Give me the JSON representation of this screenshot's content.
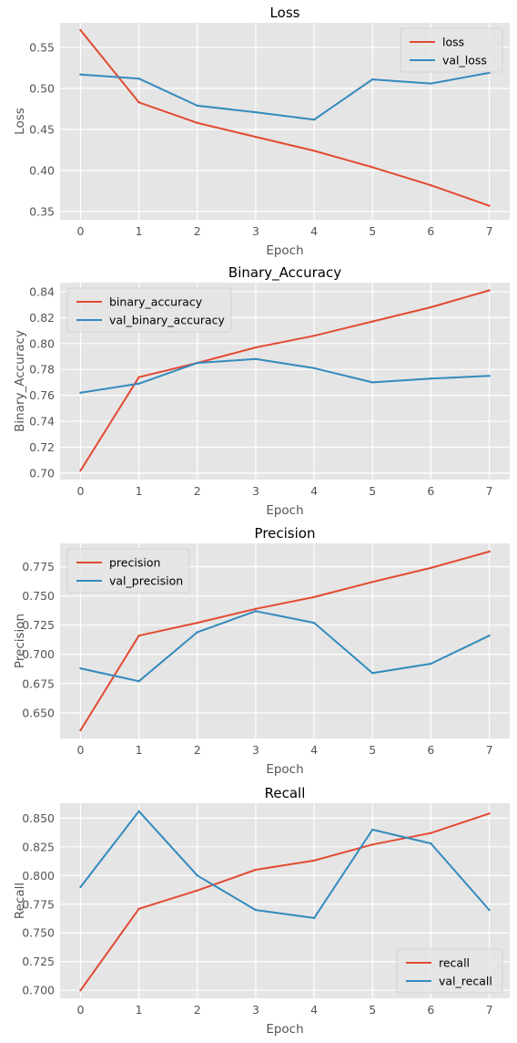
{
  "chart_data": [
    {
      "type": "line",
      "title": "Loss",
      "xlabel": "Epoch",
      "ylabel": "Loss",
      "x": [
        0,
        1,
        2,
        3,
        4,
        5,
        6,
        7
      ],
      "xticks": [
        "0",
        "1",
        "2",
        "3",
        "4",
        "5",
        "6",
        "7"
      ],
      "xlim": [
        -0.35,
        7.35
      ],
      "ylim": [
        0.34,
        0.58
      ],
      "yticks": [
        "0.35",
        "0.40",
        "0.45",
        "0.50",
        "0.55"
      ],
      "grid": true,
      "legend_position": "top-right",
      "series": [
        {
          "name": "loss",
          "color": "#E24A33",
          "values": [
            0.571,
            0.483,
            0.458,
            0.441,
            0.424,
            0.404,
            0.382,
            0.357
          ]
        },
        {
          "name": "val_loss",
          "color": "#348ABD",
          "values": [
            0.517,
            0.512,
            0.479,
            0.471,
            0.462,
            0.511,
            0.506,
            0.519
          ]
        }
      ]
    },
    {
      "type": "line",
      "title": "Binary_Accuracy",
      "xlabel": "Epoch",
      "ylabel": "Binary_Accuracy",
      "x": [
        0,
        1,
        2,
        3,
        4,
        5,
        6,
        7
      ],
      "xticks": [
        "0",
        "1",
        "2",
        "3",
        "4",
        "5",
        "6",
        "7"
      ],
      "xlim": [
        -0.35,
        7.35
      ],
      "ylim": [
        0.695,
        0.847
      ],
      "yticks": [
        "0.70",
        "0.72",
        "0.74",
        "0.76",
        "0.78",
        "0.80",
        "0.82",
        "0.84"
      ],
      "grid": true,
      "legend_position": "top-left",
      "series": [
        {
          "name": "binary_accuracy",
          "color": "#E24A33",
          "values": [
            0.702,
            0.774,
            0.785,
            0.797,
            0.806,
            0.817,
            0.828,
            0.841
          ]
        },
        {
          "name": "val_binary_accuracy",
          "color": "#348ABD",
          "values": [
            0.762,
            0.769,
            0.785,
            0.788,
            0.781,
            0.77,
            0.773,
            0.775
          ]
        }
      ]
    },
    {
      "type": "line",
      "title": "Precision",
      "xlabel": "Epoch",
      "ylabel": "Precision",
      "x": [
        0,
        1,
        2,
        3,
        4,
        5,
        6,
        7
      ],
      "xticks": [
        "0",
        "1",
        "2",
        "3",
        "4",
        "5",
        "6",
        "7"
      ],
      "xlim": [
        -0.35,
        7.35
      ],
      "ylim": [
        0.628,
        0.795
      ],
      "yticks": [
        "0.650",
        "0.675",
        "0.700",
        "0.725",
        "0.750",
        "0.775"
      ],
      "grid": true,
      "legend_position": "top-left",
      "series": [
        {
          "name": "precision",
          "color": "#E24A33",
          "values": [
            0.635,
            0.716,
            0.727,
            0.739,
            0.749,
            0.762,
            0.774,
            0.788
          ]
        },
        {
          "name": "val_precision",
          "color": "#348ABD",
          "values": [
            0.688,
            0.677,
            0.719,
            0.737,
            0.727,
            0.684,
            0.692,
            0.716
          ]
        }
      ]
    },
    {
      "type": "line",
      "title": "Recall",
      "xlabel": "Epoch",
      "ylabel": "Recall",
      "x": [
        0,
        1,
        2,
        3,
        4,
        5,
        6,
        7
      ],
      "xticks": [
        "0",
        "1",
        "2",
        "3",
        "4",
        "5",
        "6",
        "7"
      ],
      "xlim": [
        -0.35,
        7.35
      ],
      "ylim": [
        0.693,
        0.863
      ],
      "yticks": [
        "0.700",
        "0.725",
        "0.750",
        "0.775",
        "0.800",
        "0.825",
        "0.850"
      ],
      "grid": true,
      "legend_position": "bottom-right",
      "series": [
        {
          "name": "recall",
          "color": "#E24A33",
          "values": [
            0.7,
            0.771,
            0.787,
            0.805,
            0.813,
            0.827,
            0.837,
            0.854
          ]
        },
        {
          "name": "val_recall",
          "color": "#348ABD",
          "values": [
            0.79,
            0.856,
            0.8,
            0.77,
            0.763,
            0.84,
            0.828,
            0.77
          ]
        }
      ]
    }
  ]
}
